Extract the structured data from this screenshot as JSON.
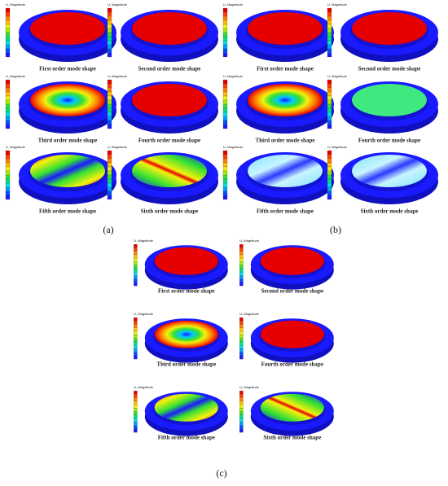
{
  "panels": [
    {
      "label": "(a)",
      "cells": [
        {
          "legend_title": "U, Magnitude",
          "caption": "First order mode shape"
        },
        {
          "legend_title": "U, Magnitude",
          "caption": "Second order mode shape"
        },
        {
          "legend_title": "U, Magnitude",
          "caption": "Third order mode shape"
        },
        {
          "legend_title": "U, Magnitude",
          "caption": "Fourth order mode shape"
        },
        {
          "legend_title": "U, Magnitude",
          "caption": "Fifth order mode shape"
        },
        {
          "legend_title": "U, Magnitude",
          "caption": "Sixth order mode shape"
        }
      ]
    },
    {
      "label": "(b)",
      "cells": [
        {
          "legend_title": "U, Magnitude",
          "caption": "First order mode shape"
        },
        {
          "legend_title": "U, Magnitude",
          "caption": "Second order mode shape"
        },
        {
          "legend_title": "U, Magnitude",
          "caption": "Third order mode shape"
        },
        {
          "legend_title": "U, Magnitude",
          "caption": "Fourth order mode shape"
        },
        {
          "legend_title": "U, Magnitude",
          "caption": "Fifth order mode shape"
        },
        {
          "legend_title": "U, Magnitude",
          "caption": "Sixth order mode shape"
        }
      ]
    },
    {
      "label": "(c)",
      "cells": [
        {
          "legend_title": "U, Magnitude",
          "caption": "First order mode shape"
        },
        {
          "legend_title": "U, Magnitude",
          "caption": "Second order mode shape"
        },
        {
          "legend_title": "U, Magnitude",
          "caption": "Third order mode shape"
        },
        {
          "legend_title": "U, Magnitude",
          "caption": "Fourth order mode shape"
        },
        {
          "legend_title": "U, Magnitude",
          "caption": "Fifth order mode shape"
        },
        {
          "legend_title": "U, Magnitude",
          "caption": "Sixth order mode shape"
        }
      ]
    }
  ]
}
